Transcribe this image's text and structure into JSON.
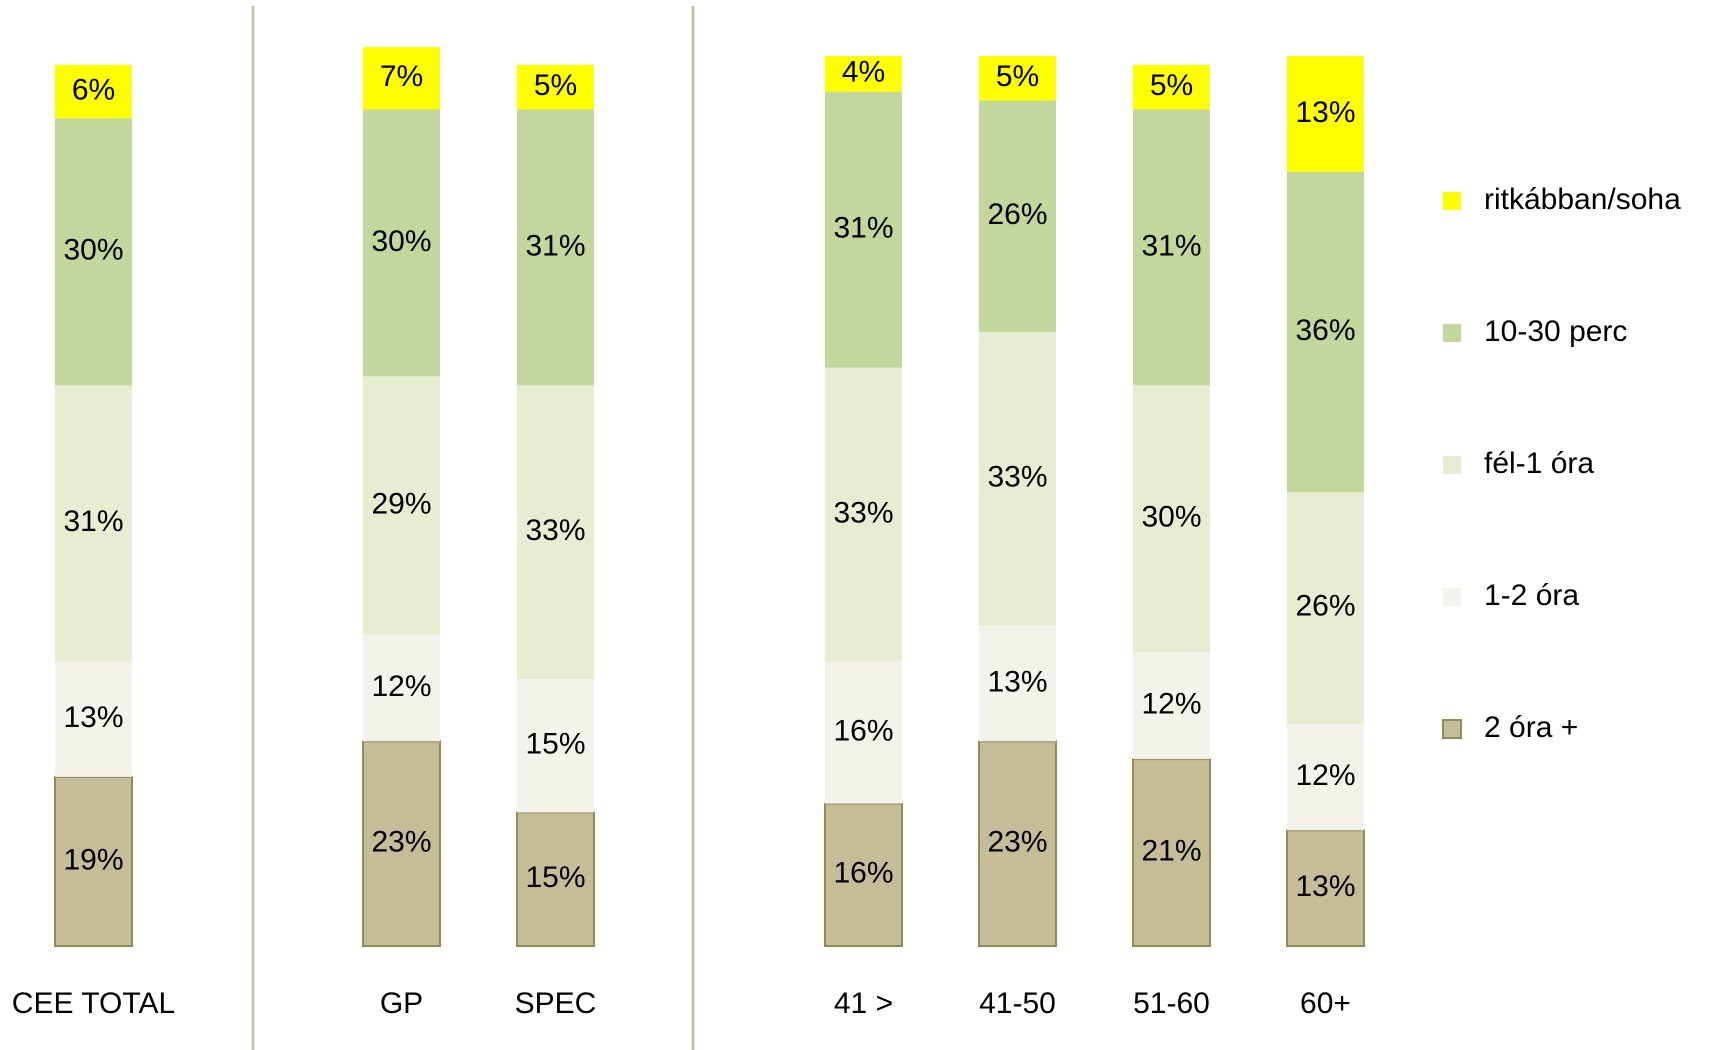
{
  "chart_data": {
    "type": "stacked_bar",
    "categories": [
      "CEE TOTAL",
      "GP",
      "SPEC",
      "41 >",
      "41-50",
      "51-60",
      "60+"
    ],
    "ylim": [
      0,
      100
    ],
    "legend": "right",
    "series": [
      {
        "name": "2 óra +",
        "color": "#c4bd97",
        "values": [
          19,
          23,
          15,
          16,
          23,
          21,
          13
        ],
        "value_labels": [
          "19%",
          "23%",
          "15%",
          "16%",
          "23%",
          "21%",
          "13%"
        ]
      },
      {
        "name": "1-2 óra",
        "color": "#f3f3ec",
        "values": [
          13,
          12,
          15,
          16,
          13,
          12,
          12
        ],
        "value_labels": [
          "13%",
          "12%",
          "15%",
          "16%",
          "13%",
          "12%",
          "12%"
        ]
      },
      {
        "name": "fél-1 óra",
        "color": "#e6edd0",
        "values": [
          31,
          29,
          33,
          33,
          33,
          30,
          26
        ],
        "value_labels": [
          "31%",
          "29%",
          "33%",
          "33%",
          "33%",
          "30%",
          "26%"
        ]
      },
      {
        "name": "10-30 perc",
        "color": "#c3d69b",
        "values": [
          30,
          30,
          31,
          31,
          26,
          31,
          36
        ],
        "value_labels": [
          "30%",
          "30%",
          "31%",
          "31%",
          "26%",
          "31%",
          "36%"
        ]
      },
      {
        "name": "ritkábban/soha",
        "color": "#ffff00",
        "values": [
          6,
          7,
          5,
          4,
          5,
          5,
          13
        ],
        "value_labels": [
          "6%",
          "7%",
          "5%",
          "4%",
          "5%",
          "5%",
          "13%"
        ]
      }
    ]
  }
}
